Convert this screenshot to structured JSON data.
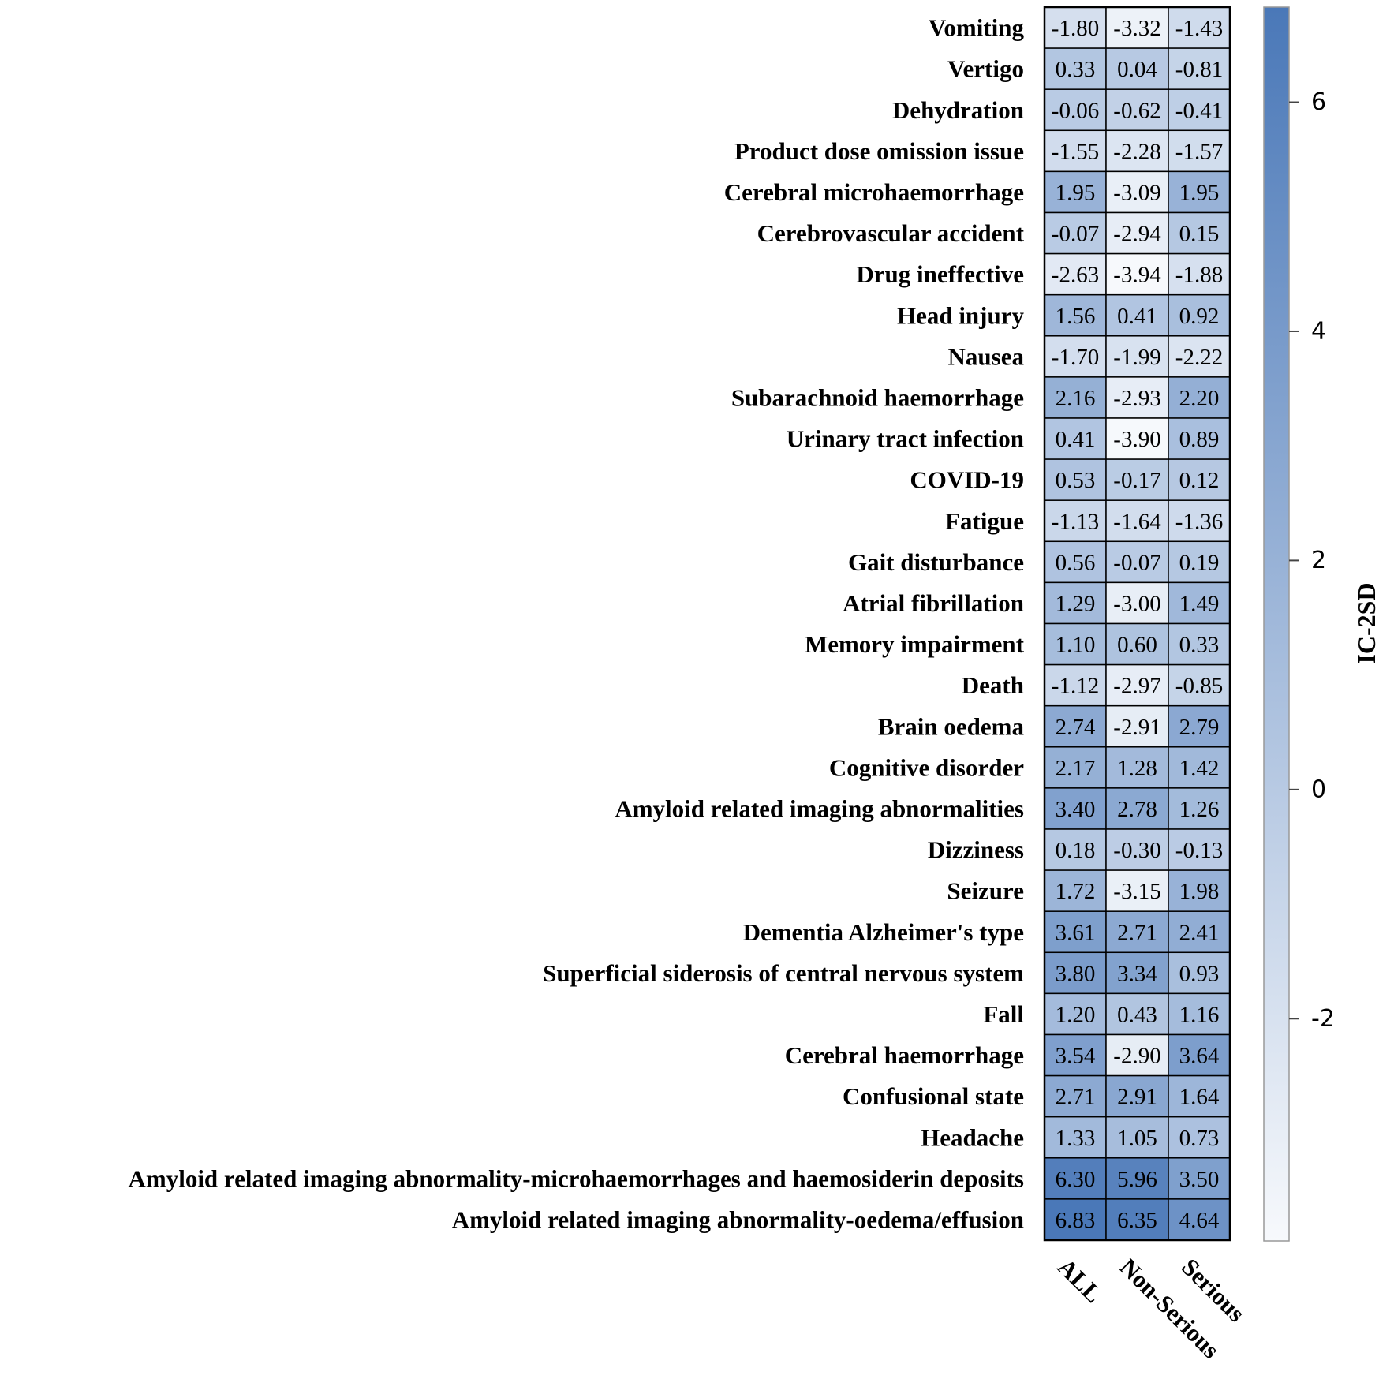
{
  "chart_data": {
    "type": "heatmap",
    "columns": [
      "ALL",
      "Non-Serious",
      "Serious"
    ],
    "rows": [
      "Vomiting",
      "Vertigo",
      "Dehydration",
      "Product dose omission issue",
      "Cerebral microhaemorrhage",
      "Cerebrovascular accident",
      "Drug ineffective",
      "Head injury",
      "Nausea",
      "Subarachnoid haemorrhage",
      "Urinary tract infection",
      "COVID-19",
      "Fatigue",
      "Gait disturbance",
      "Atrial fibrillation",
      "Memory impairment",
      "Death",
      "Brain oedema",
      "Cognitive disorder",
      "Amyloid related imaging abnormalities",
      "Dizziness",
      "Seizure",
      "Dementia Alzheimer's type",
      "Superficial siderosis of central nervous system",
      "Fall",
      "Cerebral haemorrhage",
      "Confusional state",
      "Headache",
      "Amyloid related imaging abnormality-microhaemorrhages and haemosiderin deposits",
      "Amyloid related imaging abnormality-oedema/effusion"
    ],
    "values": [
      [
        -1.8,
        -3.32,
        -1.43
      ],
      [
        0.33,
        0.04,
        -0.81
      ],
      [
        -0.06,
        -0.62,
        -0.41
      ],
      [
        -1.55,
        -2.28,
        -1.57
      ],
      [
        1.95,
        -3.09,
        1.95
      ],
      [
        -0.07,
        -2.94,
        0.15
      ],
      [
        -2.63,
        -3.94,
        -1.88
      ],
      [
        1.56,
        0.41,
        0.92
      ],
      [
        -1.7,
        -1.99,
        -2.22
      ],
      [
        2.16,
        -2.93,
        2.2
      ],
      [
        0.41,
        -3.9,
        0.89
      ],
      [
        0.53,
        -0.17,
        0.12
      ],
      [
        -1.13,
        -1.64,
        -1.36
      ],
      [
        0.56,
        -0.07,
        0.19
      ],
      [
        1.29,
        -3.0,
        1.49
      ],
      [
        1.1,
        0.6,
        0.33
      ],
      [
        -1.12,
        -2.97,
        -0.85
      ],
      [
        2.74,
        -2.91,
        2.79
      ],
      [
        2.17,
        1.28,
        1.42
      ],
      [
        3.4,
        2.78,
        1.26
      ],
      [
        0.18,
        -0.3,
        -0.13
      ],
      [
        1.72,
        -3.15,
        1.98
      ],
      [
        3.61,
        2.71,
        2.41
      ],
      [
        3.8,
        3.34,
        0.93
      ],
      [
        1.2,
        0.43,
        1.16
      ],
      [
        3.54,
        -2.9,
        3.64
      ],
      [
        2.71,
        2.91,
        1.64
      ],
      [
        1.33,
        1.05,
        0.73
      ],
      [
        6.3,
        5.96,
        3.5
      ],
      [
        6.83,
        6.35,
        4.64
      ]
    ],
    "color_scale": {
      "min": -3.94,
      "max": 6.83,
      "low_color": "#f7f9fc",
      "high_color": "#4a78b8",
      "ticks": [
        -2,
        0,
        2,
        4,
        6
      ],
      "title": "IC-2SD"
    },
    "grid": true
  }
}
